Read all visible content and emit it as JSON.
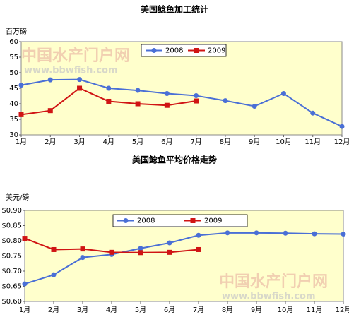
{
  "chart_data": [
    {
      "type": "line",
      "title": "美国鲶鱼加工统计",
      "ylabel": "百万磅",
      "categories": [
        "1月",
        "2月",
        "3月",
        "4月",
        "5月",
        "6月",
        "7月",
        "8月",
        "9月",
        "10月",
        "11月",
        "12月"
      ],
      "series": [
        {
          "name": "2008",
          "color": "#4a6fd6",
          "marker": "circle",
          "values": [
            46,
            47.7,
            47.8,
            45,
            44.3,
            43.3,
            42.6,
            41,
            39.2,
            43.3,
            37,
            32.7
          ]
        },
        {
          "name": "2009",
          "color": "#d01414",
          "marker": "square",
          "values": [
            36.5,
            37.8,
            45,
            40.8,
            40,
            39.5,
            40.9,
            null,
            null,
            null,
            null,
            null
          ]
        }
      ],
      "ylim": [
        30,
        60
      ],
      "yticks": [
        30,
        35,
        40,
        45,
        50,
        55,
        60
      ],
      "legend": "top",
      "watermark": [
        "中国水产门户网",
        "www.bbwfish.com"
      ]
    },
    {
      "type": "line",
      "title": "美国鲶鱼平均价格走势",
      "ylabel": "美元/磅",
      "categories": [
        "1月",
        "2月",
        "3月",
        "4月",
        "5月",
        "6月",
        "7月",
        "8月",
        "9月",
        "10月",
        "11月",
        "12月"
      ],
      "series": [
        {
          "name": "2008",
          "color": "#4a6fd6",
          "marker": "circle",
          "values": [
            0.658,
            0.688,
            0.745,
            0.755,
            0.775,
            0.793,
            0.818,
            0.826,
            0.826,
            0.825,
            0.823,
            0.822
          ]
        },
        {
          "name": "2009",
          "color": "#d01414",
          "marker": "square",
          "values": [
            0.808,
            0.771,
            0.773,
            0.762,
            0.761,
            0.762,
            0.771,
            null,
            null,
            null,
            null,
            null
          ]
        }
      ],
      "ylim": [
        0.6,
        0.9
      ],
      "yticks": [
        {
          "value": 0.6,
          "label": "$0.60"
        },
        {
          "value": 0.65,
          "label": "$0.65"
        },
        {
          "value": 0.7,
          "label": "$0.70"
        },
        {
          "value": 0.75,
          "label": "$0.75"
        },
        {
          "value": 0.8,
          "label": "$0.80"
        },
        {
          "value": 0.85,
          "label": "$0.85"
        },
        {
          "value": 0.9,
          "label": "$0.90"
        }
      ],
      "legend": "top",
      "watermark": [
        "中国水产门户网",
        "www.bbwfish.com"
      ]
    }
  ]
}
